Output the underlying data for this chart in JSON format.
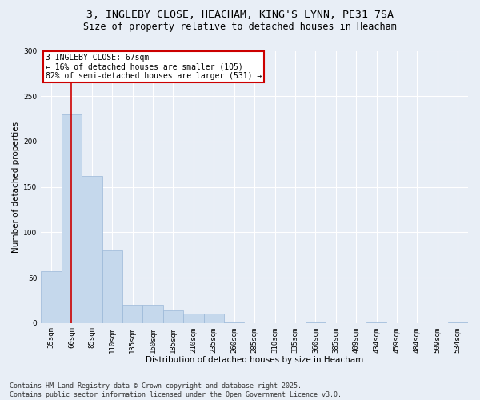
{
  "title_line1": "3, INGLEBY CLOSE, HEACHAM, KING'S LYNN, PE31 7SA",
  "title_line2": "Size of property relative to detached houses in Heacham",
  "xlabel": "Distribution of detached houses by size in Heacham",
  "ylabel": "Number of detached properties",
  "bar_color": "#c5d8ec",
  "bar_edge_color": "#9ab8d8",
  "bg_color": "#e8eef6",
  "fig_bg_color": "#e8eef6",
  "grid_color": "#ffffff",
  "annotation_box_color": "#cc0000",
  "vline_color": "#cc0000",
  "categories": [
    "35sqm",
    "60sqm",
    "85sqm",
    "110sqm",
    "135sqm",
    "160sqm",
    "185sqm",
    "210sqm",
    "235sqm",
    "260sqm",
    "285sqm",
    "310sqm",
    "335sqm",
    "360sqm",
    "385sqm",
    "409sqm",
    "434sqm",
    "459sqm",
    "484sqm",
    "509sqm",
    "534sqm"
  ],
  "values": [
    57,
    230,
    162,
    80,
    20,
    20,
    14,
    10,
    10,
    1,
    0,
    0,
    0,
    1,
    0,
    0,
    1,
    0,
    0,
    0,
    1
  ],
  "ylim": [
    0,
    300
  ],
  "yticks": [
    0,
    50,
    100,
    150,
    200,
    250,
    300
  ],
  "vline_x": 1.0,
  "annotation_text_line1": "3 INGLEBY CLOSE: 67sqm",
  "annotation_text_line2": "← 16% of detached houses are smaller (105)",
  "annotation_text_line3": "82% of semi-detached houses are larger (531) →",
  "footer_line1": "Contains HM Land Registry data © Crown copyright and database right 2025.",
  "footer_line2": "Contains public sector information licensed under the Open Government Licence v3.0.",
  "title_fontsize": 9.5,
  "subtitle_fontsize": 8.5,
  "axis_label_fontsize": 7.5,
  "tick_fontsize": 6.5,
  "annotation_fontsize": 7,
  "footer_fontsize": 6
}
